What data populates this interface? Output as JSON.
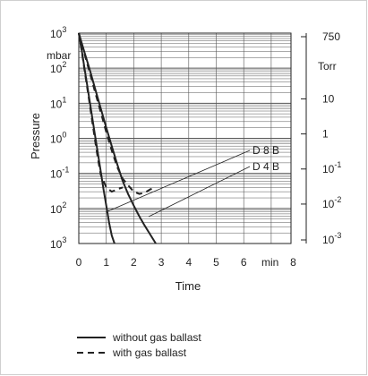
{
  "chart_data": {
    "type": "line",
    "xlabel": "Time",
    "x_unit": "min",
    "ylabel": "Pressure",
    "y_unit_left": "mbar",
    "y_unit_right": "Torr",
    "xlim": [
      0,
      8
    ],
    "x_ticks": [
      "0",
      "1",
      "2",
      "3",
      "4",
      "5",
      "6",
      "8"
    ],
    "y_scale": "log",
    "y_ticks_left": [
      {
        "base": "10",
        "exp": "3"
      },
      {
        "base": "10",
        "exp": "2"
      },
      {
        "base": "10",
        "exp": "1"
      },
      {
        "base": "10",
        "exp": "0"
      },
      {
        "base": "10",
        "exp": "-1"
      },
      {
        "base": "10",
        "exp": "2"
      },
      {
        "base": "10",
        "exp": "3"
      }
    ],
    "y_ticks_right": [
      {
        "base": "750",
        "exp": ""
      },
      {
        "base": "10",
        "exp": ""
      },
      {
        "base": "1",
        "exp": ""
      },
      {
        "base": "10",
        "exp": "-1"
      },
      {
        "base": "10",
        "exp": "-2"
      },
      {
        "base": "10",
        "exp": "-3"
      }
    ],
    "grid": true,
    "series": [
      {
        "name": "D 8 B",
        "style": "solid",
        "x": [
          0,
          0.1,
          0.2,
          0.3,
          0.4,
          0.5,
          0.6,
          0.7,
          0.8,
          0.9,
          1.0,
          1.1,
          1.2,
          1.3
        ],
        "y": [
          1000,
          350,
          110,
          35,
          11,
          3.5,
          1.1,
          0.35,
          0.11,
          0.035,
          0.012,
          0.004,
          0.0017,
          0.001
        ]
      },
      {
        "name": "D 4 B",
        "style": "solid",
        "x": [
          0,
          0.2,
          0.4,
          0.6,
          0.8,
          1.0,
          1.2,
          1.4,
          1.6,
          1.8,
          2.0,
          2.2,
          2.4,
          2.6,
          2.8
        ],
        "y": [
          1000,
          300,
          90,
          25,
          7,
          2,
          0.6,
          0.18,
          0.06,
          0.025,
          0.012,
          0.006,
          0.0032,
          0.0018,
          0.001
        ]
      },
      {
        "name": "D 8 B",
        "style": "dashed",
        "x": [
          0,
          0.1,
          0.2,
          0.3,
          0.4,
          0.5,
          0.6,
          0.7,
          0.8,
          1.0,
          1.2,
          1.4,
          1.6
        ],
        "y": [
          1000,
          330,
          100,
          30,
          9,
          2.7,
          0.8,
          0.25,
          0.09,
          0.04,
          0.03,
          0.035,
          0.04
        ]
      },
      {
        "name": "D 4 B",
        "style": "dashed",
        "x": [
          0,
          0.2,
          0.4,
          0.6,
          0.8,
          1.0,
          1.2,
          1.4,
          1.6,
          1.8,
          2.0,
          2.2,
          2.4,
          2.6,
          2.8
        ],
        "y": [
          1000,
          270,
          75,
          20,
          5.5,
          1.5,
          0.45,
          0.15,
          0.07,
          0.045,
          0.03,
          0.026,
          0.028,
          0.035,
          0.04
        ]
      }
    ],
    "annotations": [
      {
        "text": "D 8 B"
      },
      {
        "text": "D 4 B"
      }
    ]
  },
  "legend": {
    "items": [
      {
        "label": "without gas ballast",
        "style": "solid"
      },
      {
        "label": "with gas ballast",
        "style": "dashed"
      }
    ]
  },
  "colors": {
    "line": "#222222",
    "grid": "#555555",
    "frame": "#cfcfcf"
  }
}
